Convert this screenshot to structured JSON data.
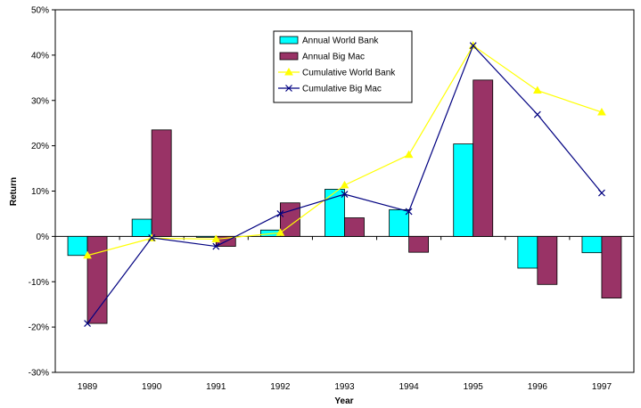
{
  "chart_data": {
    "type": "bar",
    "title": "",
    "xlabel": "Year",
    "ylabel": "Return",
    "ylim": [
      -30,
      50
    ],
    "y_step": 10,
    "y_unit": "%",
    "grid": false,
    "legend_position": "top-center",
    "categories": [
      "1989",
      "1990",
      "1991",
      "1992",
      "1993",
      "1994",
      "1995",
      "1996",
      "1997"
    ],
    "series": [
      {
        "name": "Annual World Bank",
        "kind": "bar",
        "color": "#00FFFF",
        "values": [
          -4.2,
          3.8,
          -0.2,
          1.4,
          10.4,
          5.9,
          20.4,
          -7.0,
          -3.6
        ]
      },
      {
        "name": "Annual Big Mac",
        "kind": "bar",
        "color": "#993366",
        "values": [
          -19.2,
          23.5,
          -2.2,
          7.4,
          4.1,
          -3.5,
          34.5,
          -10.6,
          -13.6
        ]
      },
      {
        "name": "Cumulative World Bank",
        "kind": "line",
        "marker": "triangle",
        "color": "#FFFF00",
        "values": [
          -4.2,
          -0.4,
          -0.6,
          0.8,
          11.3,
          18.0,
          42.1,
          32.2,
          27.4
        ]
      },
      {
        "name": "Cumulative Big Mac",
        "kind": "line",
        "marker": "x",
        "color": "#000080",
        "values": [
          -19.2,
          -0.3,
          -2.2,
          5.0,
          9.3,
          5.5,
          42.1,
          26.9,
          9.6
        ]
      }
    ]
  }
}
